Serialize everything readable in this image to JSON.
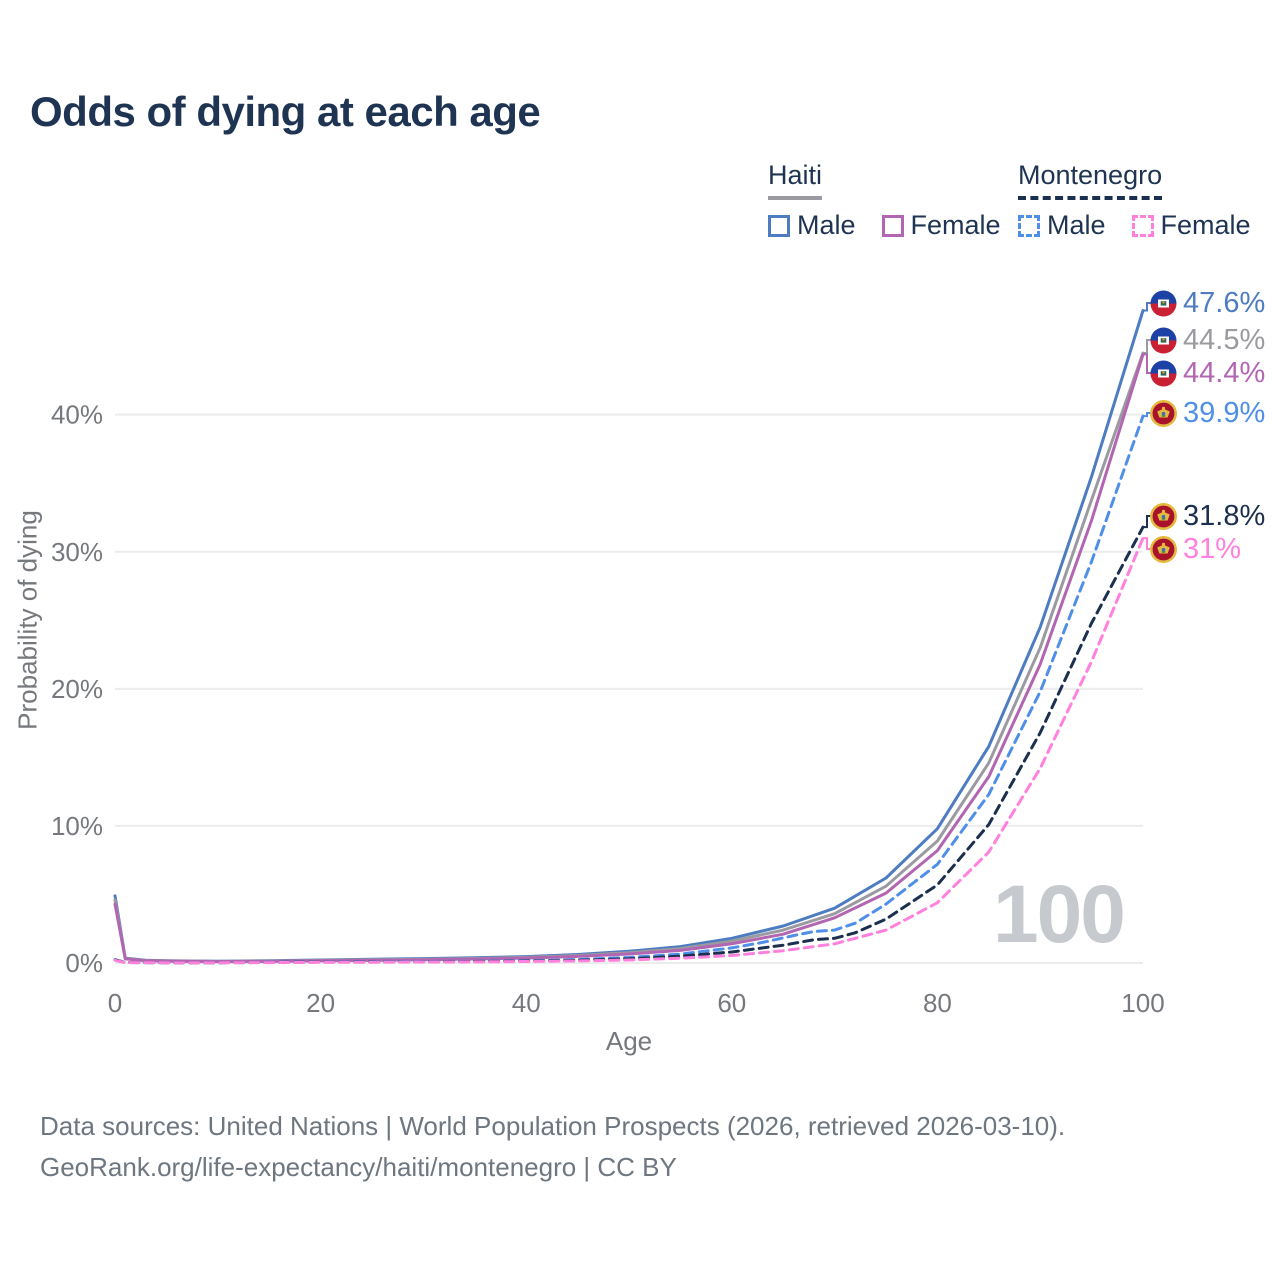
{
  "title": "Odds of dying at each age",
  "legend": {
    "groups": [
      {
        "name": "Haiti",
        "line_style": "solid",
        "line_color": "#9a9aa0",
        "items": [
          {
            "label": "Male",
            "color": "#4d7cc0"
          },
          {
            "label": "Female",
            "color": "#b266b2"
          }
        ]
      },
      {
        "name": "Montenegro",
        "line_style": "dashed",
        "line_color": "#1b2f4e",
        "items": [
          {
            "label": "Male",
            "color": "#4f8fe8"
          },
          {
            "label": "Female",
            "color": "#ff80dd"
          }
        ]
      }
    ]
  },
  "chart_data": {
    "type": "line",
    "title": "Odds of dying at each age",
    "xlabel": "Age",
    "ylabel": "Probability of dying",
    "xlim": [
      0,
      100
    ],
    "ylim_percent": [
      0,
      48
    ],
    "xticks": [
      0,
      20,
      40,
      60,
      80,
      100
    ],
    "ytick_values": [
      0,
      10,
      20,
      30,
      40
    ],
    "yticks": [
      "0%",
      "10%",
      "20%",
      "30%",
      "40%"
    ],
    "grid": "horizontal",
    "legend_position": "top-right",
    "watermark": "100",
    "series": [
      {
        "name": "Haiti Male",
        "country": "Haiti",
        "flag": "haiti",
        "color": "#4d7cc0",
        "dash": false,
        "end_value": 47.6,
        "end_label": "47.6%",
        "points": [
          [
            0,
            4.9
          ],
          [
            1,
            0.35
          ],
          [
            3,
            0.2
          ],
          [
            5,
            0.16
          ],
          [
            10,
            0.13
          ],
          [
            15,
            0.16
          ],
          [
            20,
            0.22
          ],
          [
            25,
            0.27
          ],
          [
            30,
            0.32
          ],
          [
            35,
            0.38
          ],
          [
            40,
            0.47
          ],
          [
            45,
            0.62
          ],
          [
            50,
            0.85
          ],
          [
            55,
            1.2
          ],
          [
            60,
            1.8
          ],
          [
            65,
            2.7
          ],
          [
            70,
            4.0
          ],
          [
            75,
            6.2
          ],
          [
            80,
            9.8
          ],
          [
            85,
            15.8
          ],
          [
            90,
            24.5
          ],
          [
            95,
            35.5
          ],
          [
            100,
            47.6
          ]
        ]
      },
      {
        "name": "Haiti (both sexes)",
        "country": "Haiti",
        "flag": "haiti",
        "color": "#9a9aa0",
        "dash": false,
        "end_value": 44.5,
        "end_label": "44.5%",
        "points": [
          [
            0,
            4.6
          ],
          [
            1,
            0.32
          ],
          [
            3,
            0.18
          ],
          [
            5,
            0.15
          ],
          [
            10,
            0.12
          ],
          [
            15,
            0.14
          ],
          [
            20,
            0.19
          ],
          [
            25,
            0.23
          ],
          [
            30,
            0.28
          ],
          [
            35,
            0.33
          ],
          [
            40,
            0.41
          ],
          [
            45,
            0.55
          ],
          [
            50,
            0.75
          ],
          [
            55,
            1.05
          ],
          [
            60,
            1.6
          ],
          [
            65,
            2.4
          ],
          [
            70,
            3.6
          ],
          [
            75,
            5.6
          ],
          [
            80,
            8.9
          ],
          [
            85,
            14.6
          ],
          [
            90,
            23.0
          ],
          [
            95,
            33.8
          ],
          [
            100,
            44.5
          ]
        ]
      },
      {
        "name": "Haiti Female",
        "country": "Haiti",
        "flag": "haiti",
        "color": "#b266b2",
        "dash": false,
        "end_value": 44.4,
        "end_label": "44.4%",
        "points": [
          [
            0,
            4.3
          ],
          [
            1,
            0.3
          ],
          [
            3,
            0.17
          ],
          [
            5,
            0.14
          ],
          [
            10,
            0.11
          ],
          [
            15,
            0.12
          ],
          [
            20,
            0.16
          ],
          [
            25,
            0.19
          ],
          [
            30,
            0.24
          ],
          [
            35,
            0.29
          ],
          [
            40,
            0.36
          ],
          [
            45,
            0.48
          ],
          [
            50,
            0.66
          ],
          [
            55,
            0.92
          ],
          [
            60,
            1.4
          ],
          [
            65,
            2.1
          ],
          [
            70,
            3.3
          ],
          [
            75,
            5.1
          ],
          [
            80,
            8.2
          ],
          [
            85,
            13.6
          ],
          [
            90,
            21.8
          ],
          [
            95,
            32.3
          ],
          [
            100,
            44.4
          ]
        ]
      },
      {
        "name": "Montenegro Male",
        "country": "Montenegro",
        "flag": "montenegro",
        "color": "#4f8fe8",
        "dash": true,
        "end_value": 39.9,
        "end_label": "39.9%",
        "points": [
          [
            0,
            0.25
          ],
          [
            1,
            0.04
          ],
          [
            5,
            0.03
          ],
          [
            10,
            0.03
          ],
          [
            15,
            0.05
          ],
          [
            20,
            0.09
          ],
          [
            25,
            0.1
          ],
          [
            30,
            0.11
          ],
          [
            35,
            0.13
          ],
          [
            40,
            0.17
          ],
          [
            45,
            0.25
          ],
          [
            50,
            0.4
          ],
          [
            55,
            0.65
          ],
          [
            60,
            1.1
          ],
          [
            63,
            1.5
          ],
          [
            66,
            2.0
          ],
          [
            68,
            2.3
          ],
          [
            70,
            2.4
          ],
          [
            72,
            2.9
          ],
          [
            75,
            4.3
          ],
          [
            80,
            7.2
          ],
          [
            85,
            12.3
          ],
          [
            90,
            19.8
          ],
          [
            95,
            29.3
          ],
          [
            100,
            39.9
          ]
        ]
      },
      {
        "name": "Montenegro (both sexes)",
        "country": "Montenegro",
        "flag": "montenegro",
        "color": "#1b2f4e",
        "dash": true,
        "end_value": 31.8,
        "end_label": "31.8%",
        "points": [
          [
            0,
            0.22
          ],
          [
            1,
            0.035
          ],
          [
            5,
            0.025
          ],
          [
            10,
            0.025
          ],
          [
            15,
            0.04
          ],
          [
            20,
            0.07
          ],
          [
            25,
            0.08
          ],
          [
            30,
            0.09
          ],
          [
            35,
            0.11
          ],
          [
            40,
            0.14
          ],
          [
            45,
            0.2
          ],
          [
            50,
            0.3
          ],
          [
            55,
            0.5
          ],
          [
            60,
            0.8
          ],
          [
            65,
            1.3
          ],
          [
            68,
            1.7
          ],
          [
            70,
            1.8
          ],
          [
            72,
            2.2
          ],
          [
            75,
            3.2
          ],
          [
            80,
            5.7
          ],
          [
            85,
            10.1
          ],
          [
            90,
            16.8
          ],
          [
            95,
            24.8
          ],
          [
            100,
            31.8
          ]
        ]
      },
      {
        "name": "Montenegro Female",
        "country": "Montenegro",
        "flag": "montenegro",
        "color": "#ff80dd",
        "dash": true,
        "end_value": 31.0,
        "end_label": "31%",
        "points": [
          [
            0,
            0.2
          ],
          [
            1,
            0.03
          ],
          [
            5,
            0.02
          ],
          [
            10,
            0.02
          ],
          [
            15,
            0.03
          ],
          [
            20,
            0.05
          ],
          [
            25,
            0.06
          ],
          [
            30,
            0.07
          ],
          [
            35,
            0.08
          ],
          [
            40,
            0.11
          ],
          [
            45,
            0.15
          ],
          [
            50,
            0.22
          ],
          [
            55,
            0.35
          ],
          [
            60,
            0.55
          ],
          [
            65,
            0.9
          ],
          [
            70,
            1.4
          ],
          [
            75,
            2.4
          ],
          [
            80,
            4.4
          ],
          [
            85,
            8.1
          ],
          [
            90,
            14.2
          ],
          [
            95,
            22.0
          ],
          [
            100,
            31.0
          ]
        ]
      }
    ]
  },
  "footer": {
    "line1": "Data sources: United Nations | World Population Prospects (2026, retrieved 2026-03-10).",
    "line2": "GeoRank.org/life-expectancy/haiti/montenegro | CC BY"
  }
}
